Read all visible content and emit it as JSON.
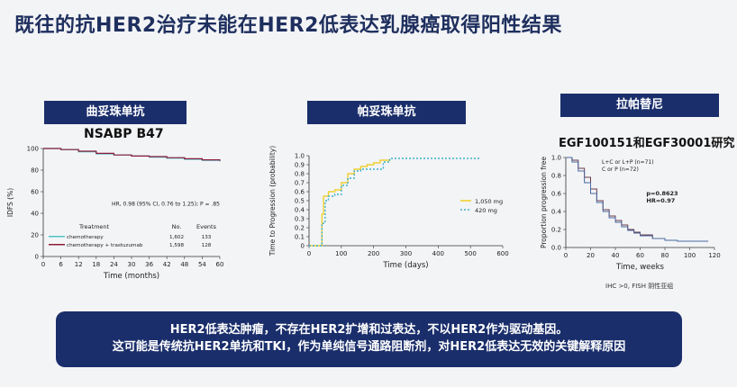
{
  "page_title": "既往的抗HER2治疗未能在HER2低表达乳腺癌取得阳性结果",
  "panels": [
    {
      "header": "曲妥珠单抗",
      "subtitle": "NSABP B47"
    },
    {
      "header": "帕妥珠单抗"
    },
    {
      "header": "拉帕替尼",
      "subtitle": "EGF100151和EGF30001研究"
    }
  ],
  "footnote": "IHC >0, FISH 阴性亚组",
  "banner": {
    "line1": "HER2低表达肿瘤，不存在HER2扩增和过表达，不以HER2作为驱动基因。",
    "line2": "这可能是传统抗HER2单抗和TKI，作为单纯信号通路阻断剂，对HER2低表达无效的关键解释原因"
  },
  "chart_data": [
    {
      "type": "line",
      "xlabel": "Time (months)",
      "ylabel": "IDFS (%)",
      "xlim": [
        0,
        60
      ],
      "ylim": [
        0,
        100
      ],
      "xticks": [
        0,
        6,
        12,
        18,
        24,
        30,
        36,
        42,
        48,
        54,
        60
      ],
      "yticks": [
        0,
        20,
        40,
        60,
        80,
        100
      ],
      "annotation": "HR, 0.98 (95% CI, 0.76 to 1.25); P = .85",
      "table": {
        "headers": [
          "Treatment",
          "No.",
          "Events"
        ],
        "rows": [
          {
            "label": "chemotherapy",
            "no": "1,602",
            "events": "133",
            "color": "#4fc3c8"
          },
          {
            "label": "chemotherapy + trastuzumab",
            "no": "1,598",
            "events": "128",
            "color": "#8b1a3a"
          }
        ]
      },
      "series": [
        {
          "name": "chemotherapy",
          "color": "#4fc3c8",
          "x": [
            0,
            6,
            12,
            18,
            24,
            30,
            36,
            42,
            48,
            54,
            60
          ],
          "y": [
            100,
            99,
            97,
            95,
            94,
            93,
            92,
            91,
            90,
            89,
            88
          ]
        },
        {
          "name": "chemotherapy + trastuzumab",
          "color": "#8b1a3a",
          "x": [
            0,
            6,
            12,
            18,
            24,
            30,
            36,
            42,
            48,
            54,
            60
          ],
          "y": [
            100,
            99,
            97.5,
            95.5,
            94,
            93,
            92.5,
            91.5,
            90.5,
            89.5,
            88.5
          ]
        }
      ]
    },
    {
      "type": "line",
      "xlabel": "Time (days)",
      "ylabel": "Time to Progression (probability)",
      "xlim": [
        0,
        600
      ],
      "ylim": [
        0,
        1.0
      ],
      "xticks": [
        0,
        100,
        200,
        300,
        400,
        500,
        600
      ],
      "yticks": [
        0,
        0.1,
        0.2,
        0.3,
        0.4,
        0.5,
        0.6,
        0.7,
        0.8,
        0.9,
        1.0
      ],
      "ytick_labels": [
        "0",
        "0.1",
        "0.2",
        "0.3",
        "0.4",
        "0.5",
        "0.6",
        "0.7",
        "0.8",
        "0.9",
        "1.0"
      ],
      "series": [
        {
          "name": "1,050 mg",
          "color": "#f0d030",
          "style": "solid",
          "x": [
            0,
            30,
            40,
            45,
            60,
            70,
            80,
            100,
            120,
            140,
            160,
            180,
            200,
            220,
            250
          ],
          "y": [
            0,
            0,
            0.35,
            0.55,
            0.6,
            0.6,
            0.62,
            0.7,
            0.8,
            0.85,
            0.88,
            0.9,
            0.92,
            0.95,
            0.96
          ]
        },
        {
          "name": "420 mg",
          "color": "#3ab0c8",
          "style": "dotted",
          "x": [
            0,
            30,
            40,
            50,
            60,
            80,
            100,
            120,
            140,
            160,
            200,
            230,
            250,
            530
          ],
          "y": [
            0,
            0,
            0.25,
            0.5,
            0.55,
            0.57,
            0.67,
            0.75,
            0.83,
            0.85,
            0.85,
            0.93,
            0.97,
            0.97
          ]
        }
      ]
    },
    {
      "type": "line",
      "xlabel": "Time, weeks",
      "ylabel": "Proportion progression free",
      "xlim": [
        0,
        120
      ],
      "ylim": [
        0,
        1.0
      ],
      "xticks": [
        0,
        20,
        40,
        60,
        80,
        100,
        120
      ],
      "yticks": [
        0,
        0.2,
        0.4,
        0.6,
        0.8,
        1.0
      ],
      "ytick_labels": [
        "0.0",
        "0.2",
        "0.4",
        "0.6",
        "0.8",
        "1.0"
      ],
      "annotation_lines": [
        "p=0.8623",
        "HR=0.97"
      ],
      "legend": [
        "L+C or L+P (n=71)",
        "C or P (n=72)"
      ],
      "series": [
        {
          "name": "L+C or L+P (n=71)",
          "color": "#6a3a4a",
          "x": [
            0,
            5,
            10,
            15,
            20,
            25,
            30,
            35,
            40,
            45,
            50,
            55,
            60,
            70,
            80,
            90
          ],
          "y": [
            1.0,
            0.97,
            0.88,
            0.78,
            0.65,
            0.52,
            0.42,
            0.35,
            0.3,
            0.25,
            0.2,
            0.17,
            0.14,
            0.1,
            0.08,
            0.08
          ]
        },
        {
          "name": "C or P (n=72)",
          "color": "#4a6aa0",
          "x": [
            0,
            5,
            10,
            15,
            20,
            25,
            30,
            35,
            40,
            45,
            50,
            55,
            60,
            70,
            80,
            90,
            100,
            115
          ],
          "y": [
            1.0,
            0.95,
            0.85,
            0.72,
            0.6,
            0.5,
            0.4,
            0.33,
            0.28,
            0.23,
            0.19,
            0.16,
            0.13,
            0.1,
            0.08,
            0.07,
            0.07,
            0.07
          ]
        }
      ]
    }
  ]
}
